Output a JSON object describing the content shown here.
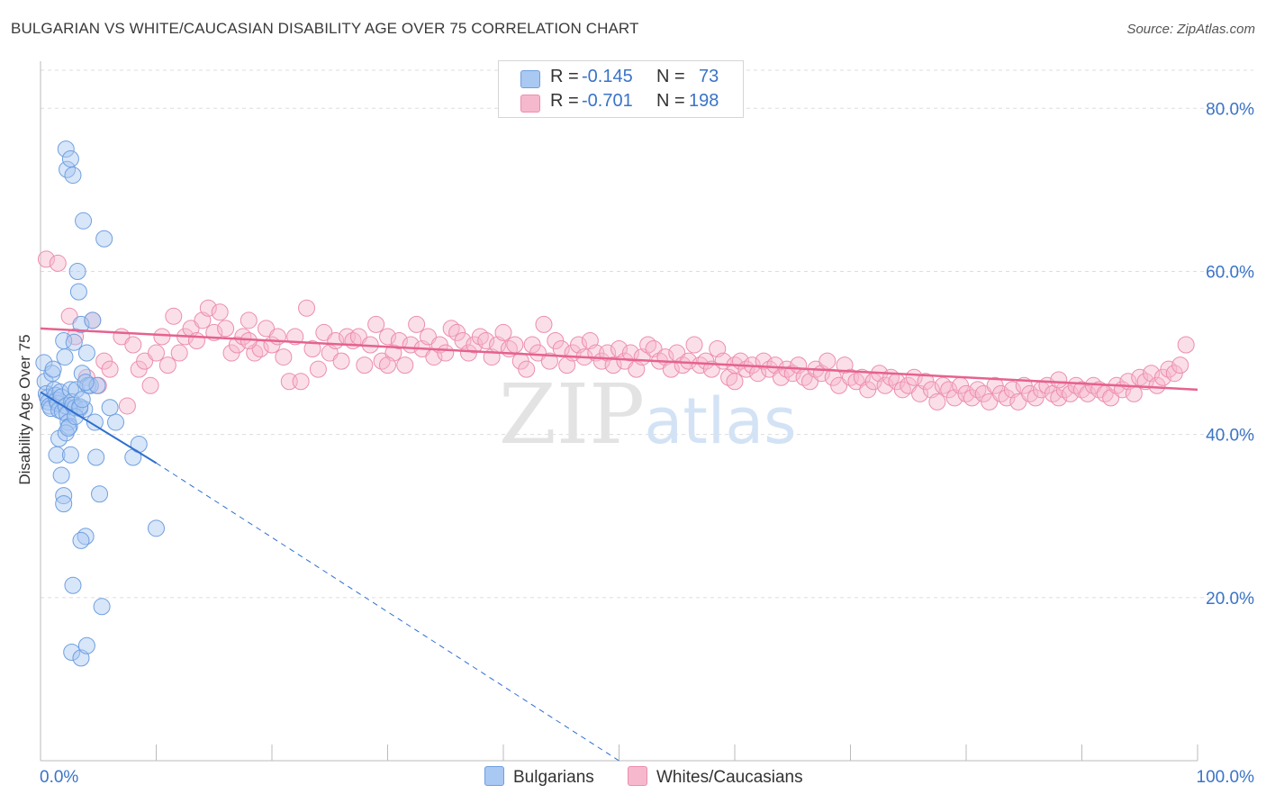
{
  "title": "BULGARIAN VS WHITE/CAUCASIAN DISABILITY AGE OVER 75 CORRELATION CHART",
  "source": "Source: ZipAtlas.com",
  "watermark": {
    "zip": "ZIP",
    "atlas": "atlas"
  },
  "legend": {
    "bulgarians": {
      "r_label": "R = ",
      "r_value": "-0.145",
      "n_label": "N = ",
      "n_value": "73"
    },
    "whites": {
      "r_label": "R = ",
      "r_value": "-0.701",
      "n_label": "N = ",
      "n_value": "198"
    }
  },
  "bottom_legend": {
    "bulgarians": "Bulgarians",
    "whites": "Whites/Caucasians"
  },
  "colors": {
    "blue_fill": "#a9c8f2",
    "blue_stroke": "#6f9fe0",
    "blue_line": "#2f6fd0",
    "pink_fill": "#f6b8cd",
    "pink_stroke": "#ec8eae",
    "pink_line": "#e5628f",
    "tick_text": "#3a73c7",
    "grid": "#dddddd"
  },
  "chart_data": {
    "type": "scatter",
    "ylabel": "Disability Age Over 75",
    "xlim": [
      0,
      100
    ],
    "ylim": [
      0,
      85
    ],
    "x_tick_labels": [
      "0.0%",
      "100.0%"
    ],
    "y_ticks": [
      20,
      40,
      60,
      80
    ],
    "y_tick_labels": [
      "20.0%",
      "40.0%",
      "60.0%",
      "80.0%"
    ],
    "grid": true,
    "series": [
      {
        "name": "Bulgarians",
        "trend": {
          "x": [
            0,
            10
          ],
          "y": [
            45.2,
            36.5
          ],
          "dashed_extension_to": [
            50,
            0
          ]
        },
        "points": [
          [
            0.3,
            48.8
          ],
          [
            0.4,
            46.5
          ],
          [
            0.5,
            45
          ],
          [
            0.6,
            44.5
          ],
          [
            0.7,
            44
          ],
          [
            0.8,
            43.5
          ],
          [
            0.9,
            43.2
          ],
          [
            1,
            47.5
          ],
          [
            1.1,
            48
          ],
          [
            1.2,
            45.5
          ],
          [
            1.3,
            44.8
          ],
          [
            1.4,
            44.2
          ],
          [
            1.5,
            43.8
          ],
          [
            1.6,
            43
          ],
          [
            1.7,
            45.2
          ],
          [
            1.8,
            44.6
          ],
          [
            1.9,
            42.8
          ],
          [
            2,
            51.5
          ],
          [
            2.1,
            49.5
          ],
          [
            2.2,
            43.5
          ],
          [
            2.3,
            42.5
          ],
          [
            2.4,
            41.5
          ],
          [
            2.5,
            41
          ],
          [
            2.6,
            45.5
          ],
          [
            2.7,
            44
          ],
          [
            2.8,
            43.6
          ],
          [
            1.4,
            37.5
          ],
          [
            1.6,
            39.5
          ],
          [
            1.8,
            35
          ],
          [
            2,
            32.5
          ],
          [
            2,
            31.5
          ],
          [
            2.2,
            40.2
          ],
          [
            2.4,
            40.8
          ],
          [
            2.6,
            37.5
          ],
          [
            2.8,
            21.5
          ],
          [
            2.3,
            72.5
          ],
          [
            2.2,
            75
          ],
          [
            2.6,
            73.8
          ],
          [
            2.8,
            71.8
          ],
          [
            3,
            43.3
          ],
          [
            3.1,
            45.5
          ],
          [
            2.9,
            51.3
          ],
          [
            3.2,
            60
          ],
          [
            3.3,
            57.5
          ],
          [
            3.4,
            43.2
          ],
          [
            3.5,
            53.5
          ],
          [
            3.6,
            47.5
          ],
          [
            3.7,
            66.2
          ],
          [
            3.8,
            43.1
          ],
          [
            3.9,
            27.5
          ],
          [
            3.5,
            27
          ],
          [
            4,
            50
          ],
          [
            4.1,
            46
          ],
          [
            4.3,
            46
          ],
          [
            4.5,
            54
          ],
          [
            4.7,
            41.5
          ],
          [
            4.8,
            37.2
          ],
          [
            4.9,
            46
          ],
          [
            5.1,
            32.7
          ],
          [
            5.3,
            18.9
          ],
          [
            5.5,
            64
          ],
          [
            6,
            43.3
          ],
          [
            6.5,
            41.5
          ],
          [
            8,
            37.2
          ],
          [
            8.5,
            38.8
          ],
          [
            10,
            28.5
          ],
          [
            2.7,
            13.3
          ],
          [
            3.5,
            12.6
          ],
          [
            4,
            14.1
          ],
          [
            3,
            42.2
          ],
          [
            3.4,
            43.4
          ],
          [
            3.6,
            44.3
          ],
          [
            3.9,
            46.4
          ]
        ]
      },
      {
        "name": "Whites/Caucasians",
        "trend": {
          "x": [
            0,
            100
          ],
          "y": [
            53,
            45.5
          ]
        },
        "points": [
          [
            0.5,
            61.5
          ],
          [
            1.5,
            61
          ],
          [
            2.5,
            54.5
          ],
          [
            3,
            52
          ],
          [
            4,
            47
          ],
          [
            4.5,
            54
          ],
          [
            5,
            46
          ],
          [
            5.5,
            49
          ],
          [
            6,
            48
          ],
          [
            7,
            52
          ],
          [
            7.5,
            43.5
          ],
          [
            8,
            51
          ],
          [
            8.5,
            48
          ],
          [
            9,
            49
          ],
          [
            9.5,
            46
          ],
          [
            10,
            50
          ],
          [
            10.5,
            52
          ],
          [
            11,
            48.5
          ],
          [
            11.5,
            54.5
          ],
          [
            12,
            50
          ],
          [
            12.5,
            52
          ],
          [
            13,
            53
          ],
          [
            13.5,
            51.5
          ],
          [
            14,
            54
          ],
          [
            14.5,
            55.5
          ],
          [
            15,
            52.5
          ],
          [
            15.5,
            55
          ],
          [
            16,
            53
          ],
          [
            16.5,
            50
          ],
          [
            17,
            51
          ],
          [
            17.5,
            52
          ],
          [
            18,
            54
          ],
          [
            18.5,
            50
          ],
          [
            19,
            50.5
          ],
          [
            19.5,
            53
          ],
          [
            20,
            51
          ],
          [
            20.5,
            52
          ],
          [
            21,
            49.5
          ],
          [
            21.5,
            46.5
          ],
          [
            22,
            52
          ],
          [
            22.5,
            46.5
          ],
          [
            23,
            55.5
          ],
          [
            23.5,
            50.5
          ],
          [
            24,
            48
          ],
          [
            24.5,
            52.5
          ],
          [
            25,
            50
          ],
          [
            25.5,
            51.5
          ],
          [
            26,
            49
          ],
          [
            26.5,
            52
          ],
          [
            27,
            51.5
          ],
          [
            27.5,
            52
          ],
          [
            28,
            48.5
          ],
          [
            28.5,
            51
          ],
          [
            29,
            53.5
          ],
          [
            29.5,
            49
          ],
          [
            30,
            52
          ],
          [
            30.5,
            50
          ],
          [
            31,
            51.5
          ],
          [
            31.5,
            48.5
          ],
          [
            32,
            51
          ],
          [
            32.5,
            53.5
          ],
          [
            33,
            50.5
          ],
          [
            33.5,
            52
          ],
          [
            34,
            49.5
          ],
          [
            34.5,
            51
          ],
          [
            35,
            50
          ],
          [
            35.5,
            53
          ],
          [
            36,
            52.5
          ],
          [
            36.5,
            51.5
          ],
          [
            37,
            50
          ],
          [
            37.5,
            51
          ],
          [
            38,
            52
          ],
          [
            38.5,
            51.5
          ],
          [
            39,
            49.5
          ],
          [
            39.5,
            51
          ],
          [
            40,
            52.5
          ],
          [
            40.5,
            50.5
          ],
          [
            41,
            51
          ],
          [
            41.5,
            49
          ],
          [
            42,
            48
          ],
          [
            42.5,
            51
          ],
          [
            43,
            50
          ],
          [
            43.5,
            53.5
          ],
          [
            44,
            49
          ],
          [
            44.5,
            51.5
          ],
          [
            45,
            50.5
          ],
          [
            45.5,
            48.5
          ],
          [
            46,
            50
          ],
          [
            46.5,
            51
          ],
          [
            47,
            49.5
          ],
          [
            47.5,
            51.5
          ],
          [
            48,
            50
          ],
          [
            48.5,
            49
          ],
          [
            49,
            50
          ],
          [
            49.5,
            48.5
          ],
          [
            50,
            50.5
          ],
          [
            50.5,
            49
          ],
          [
            51,
            50
          ],
          [
            51.5,
            48
          ],
          [
            52,
            49.5
          ],
          [
            52.5,
            51
          ],
          [
            53,
            50.5
          ],
          [
            53.5,
            49
          ],
          [
            54,
            49.5
          ],
          [
            54.5,
            48
          ],
          [
            55,
            50
          ],
          [
            55.5,
            48.5
          ],
          [
            56,
            49
          ],
          [
            56.5,
            51
          ],
          [
            57,
            48.5
          ],
          [
            57.5,
            49
          ],
          [
            58,
            48
          ],
          [
            58.5,
            50.5
          ],
          [
            59,
            49
          ],
          [
            59.5,
            47
          ],
          [
            60,
            48.5
          ],
          [
            60.5,
            49
          ],
          [
            61,
            48
          ],
          [
            61.5,
            48.5
          ],
          [
            62,
            47.5
          ],
          [
            62.5,
            49
          ],
          [
            63,
            48
          ],
          [
            63.5,
            48.5
          ],
          [
            64,
            47
          ],
          [
            64.5,
            48
          ],
          [
            65,
            47.5
          ],
          [
            65.5,
            48.5
          ],
          [
            66,
            47
          ],
          [
            66.5,
            46.5
          ],
          [
            67,
            48
          ],
          [
            67.5,
            47.5
          ],
          [
            68,
            49
          ],
          [
            68.5,
            47
          ],
          [
            69,
            46
          ],
          [
            69.5,
            48.5
          ],
          [
            70,
            47
          ],
          [
            70.5,
            46.5
          ],
          [
            71,
            47
          ],
          [
            71.5,
            45.5
          ],
          [
            72,
            46.5
          ],
          [
            72.5,
            47.5
          ],
          [
            73,
            46
          ],
          [
            73.5,
            47
          ],
          [
            74,
            46.5
          ],
          [
            74.5,
            45.5
          ],
          [
            75,
            46
          ],
          [
            75.5,
            47
          ],
          [
            76,
            45
          ],
          [
            76.5,
            46.5
          ],
          [
            77,
            45.5
          ],
          [
            77.5,
            44
          ],
          [
            78,
            46
          ],
          [
            78.5,
            45.5
          ],
          [
            79,
            44.5
          ],
          [
            79.5,
            46
          ],
          [
            80,
            45
          ],
          [
            80.5,
            44.5
          ],
          [
            81,
            45.5
          ],
          [
            81.5,
            45
          ],
          [
            82,
            44
          ],
          [
            82.5,
            46
          ],
          [
            83,
            45
          ],
          [
            83.5,
            44.5
          ],
          [
            84,
            45.5
          ],
          [
            84.5,
            44
          ],
          [
            85,
            46
          ],
          [
            85.5,
            45
          ],
          [
            86,
            44.5
          ],
          [
            86.5,
            45.5
          ],
          [
            87,
            46
          ],
          [
            87.5,
            45
          ],
          [
            88,
            44.5
          ],
          [
            88.5,
            45.5
          ],
          [
            89,
            45
          ],
          [
            89.5,
            46
          ],
          [
            90,
            45.5
          ],
          [
            90.5,
            45
          ],
          [
            91,
            46
          ],
          [
            91.5,
            45.5
          ],
          [
            92,
            45
          ],
          [
            92.5,
            44.5
          ],
          [
            93,
            46
          ],
          [
            93.5,
            45.5
          ],
          [
            94,
            46.5
          ],
          [
            94.5,
            45
          ],
          [
            95,
            47
          ],
          [
            95.5,
            46.5
          ],
          [
            96,
            47.5
          ],
          [
            96.5,
            46
          ],
          [
            97,
            47
          ],
          [
            97.5,
            48
          ],
          [
            98,
            47.5
          ],
          [
            98.5,
            48.5
          ],
          [
            99,
            51
          ],
          [
            18,
            51.5
          ],
          [
            30,
            48.5
          ],
          [
            60,
            46.5
          ],
          [
            88,
            46.7
          ]
        ]
      }
    ]
  }
}
